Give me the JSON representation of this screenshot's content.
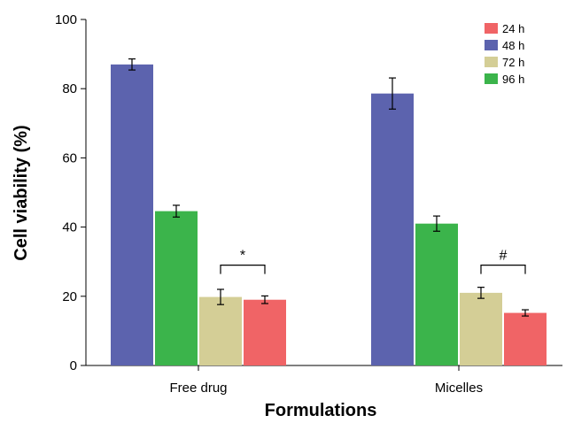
{
  "chart_data": {
    "type": "bar",
    "xlabel": "Formulations",
    "ylabel": "Cell viability (%)",
    "ylim": [
      0,
      100
    ],
    "yticks": [
      0,
      20,
      40,
      60,
      80,
      100
    ],
    "categories": [
      "Free drug",
      "Micelles"
    ],
    "bar_order": [
      "48 h",
      "96 h",
      "72 h",
      "24 h"
    ],
    "series": [
      {
        "name": "24 h",
        "color": "#F06466",
        "values": [
          19.0,
          15.2
        ],
        "errors": [
          1.1,
          0.9
        ]
      },
      {
        "name": "48 h",
        "color": "#5C63AE",
        "values": [
          87.0,
          78.6
        ],
        "errors": [
          1.6,
          4.5
        ]
      },
      {
        "name": "72 h",
        "color": "#D4CE96",
        "values": [
          19.8,
          21.0
        ],
        "errors": [
          2.2,
          1.6
        ]
      },
      {
        "name": "96 h",
        "color": "#3BB44B",
        "values": [
          44.6,
          41.0
        ],
        "errors": [
          1.7,
          2.2
        ]
      }
    ],
    "legend": {
      "placement": "top-right",
      "entries": [
        "24 h",
        "48 h",
        "72 h",
        "96 h"
      ]
    },
    "annotations": [
      {
        "text": "*",
        "category": "Free drug",
        "between": [
          "72 h",
          "24 h"
        ],
        "level": 29
      },
      {
        "text": "#",
        "category": "Micelles",
        "between": [
          "72 h",
          "24 h"
        ],
        "level": 29
      }
    ]
  }
}
